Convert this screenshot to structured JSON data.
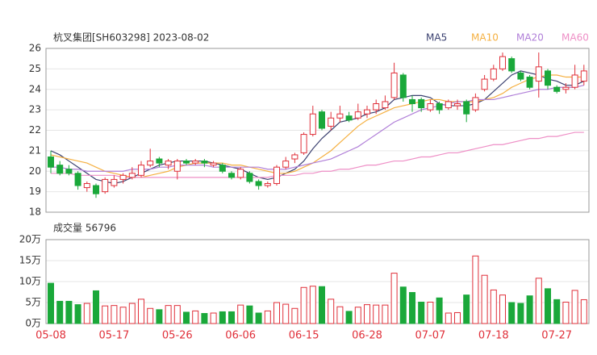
{
  "chart_data": [
    {
      "type": "candlestick",
      "title": "杭叉集团[SH603298] 2023-08-02",
      "categories": [
        "05-08",
        null,
        null,
        null,
        null,
        null,
        null,
        "05-17",
        null,
        null,
        null,
        null,
        null,
        null,
        "05-26",
        null,
        null,
        null,
        null,
        null,
        null,
        "06-06",
        null,
        null,
        null,
        null,
        null,
        null,
        "06-15",
        null,
        null,
        null,
        null,
        null,
        null,
        "06-28",
        null,
        null,
        null,
        null,
        null,
        null,
        "07-07",
        null,
        null,
        null,
        null,
        null,
        null,
        "07-18",
        null,
        null,
        null,
        null,
        null,
        null,
        "07-27",
        null,
        null,
        null
      ],
      "open": [
        20.7,
        20.3,
        20.1,
        19.9,
        19.2,
        19.3,
        19.0,
        19.3,
        19.6,
        19.7,
        19.8,
        20.3,
        20.6,
        20.3,
        20.0,
        20.5,
        20.4,
        20.5,
        20.3,
        20.3,
        19.9,
        19.7,
        19.9,
        19.5,
        19.3,
        19.4,
        20.2,
        20.6,
        20.9,
        21.8,
        22.9,
        22.2,
        22.6,
        22.7,
        22.6,
        22.8,
        23.0,
        23.1,
        23.6,
        24.7,
        23.5,
        23.5,
        23.0,
        23.3,
        23.1,
        23.2,
        23.4,
        23.0,
        24.0,
        24.5,
        25.0,
        25.5,
        24.8,
        24.6,
        24.4,
        24.9,
        24.1,
        24.0,
        24.1,
        24.4
      ],
      "high": [
        21.0,
        20.5,
        20.3,
        20.0,
        19.5,
        19.4,
        19.7,
        19.8,
        19.9,
        20.2,
        20.5,
        21.1,
        20.7,
        20.6,
        20.6,
        20.6,
        20.6,
        20.6,
        20.5,
        20.4,
        20.0,
        20.2,
        20.0,
        19.6,
        19.5,
        20.3,
        20.7,
        20.9,
        21.9,
        23.2,
        23.0,
        22.9,
        23.2,
        22.9,
        23.3,
        23.2,
        23.5,
        23.7,
        25.3,
        24.8,
        23.7,
        23.6,
        23.5,
        23.4,
        23.5,
        23.5,
        23.5,
        23.8,
        24.7,
        25.2,
        25.8,
        25.6,
        24.9,
        24.7,
        25.8,
        25.0,
        24.2,
        24.3,
        25.2,
        25.2
      ],
      "low": [
        19.9,
        19.8,
        19.8,
        19.1,
        19.0,
        18.7,
        18.9,
        19.2,
        19.4,
        19.6,
        19.7,
        20.2,
        20.2,
        20.1,
        19.6,
        20.3,
        20.3,
        20.2,
        20.2,
        19.9,
        19.6,
        19.6,
        19.4,
        19.1,
        19.2,
        19.3,
        20.1,
        20.4,
        20.8,
        21.7,
        22.0,
        22.0,
        22.4,
        22.4,
        22.5,
        22.6,
        22.8,
        23.0,
        23.5,
        23.4,
        22.9,
        22.9,
        22.9,
        22.8,
        23.0,
        23.0,
        22.4,
        22.9,
        23.9,
        24.4,
        24.9,
        24.8,
        24.4,
        24.0,
        23.6,
        24.0,
        23.8,
        23.8,
        24.0,
        24.2
      ],
      "close": [
        20.2,
        19.9,
        19.9,
        19.3,
        19.4,
        18.9,
        19.6,
        19.6,
        19.8,
        19.9,
        20.3,
        20.5,
        20.4,
        20.5,
        20.5,
        20.4,
        20.5,
        20.4,
        20.4,
        20.0,
        19.7,
        20.1,
        19.5,
        19.3,
        19.4,
        20.2,
        20.5,
        20.8,
        21.8,
        22.8,
        22.1,
        22.6,
        22.8,
        22.5,
        22.9,
        23.0,
        23.3,
        23.4,
        24.8,
        23.6,
        23.3,
        23.1,
        23.3,
        23.0,
        23.4,
        23.3,
        22.8,
        23.6,
        24.5,
        25.0,
        25.6,
        24.9,
        24.5,
        24.1,
        25.1,
        24.2,
        23.9,
        24.1,
        24.7,
        24.9
      ],
      "up_color": "#e0303a",
      "down_color": "#1aa83a",
      "series": [
        {
          "name": "MA5",
          "color": "#3b4170",
          "values": [
            21.0,
            20.8,
            20.5,
            20.2,
            19.9,
            19.6,
            19.5,
            19.4,
            19.5,
            19.7,
            19.9,
            20.1,
            20.3,
            20.4,
            20.5,
            20.5,
            20.5,
            20.5,
            20.4,
            20.3,
            20.2,
            20.1,
            19.9,
            19.7,
            19.6,
            19.7,
            19.9,
            20.1,
            20.5,
            21.1,
            21.6,
            22.0,
            22.4,
            22.5,
            22.6,
            22.8,
            22.9,
            23.1,
            23.5,
            23.6,
            23.7,
            23.7,
            23.6,
            23.3,
            23.2,
            23.2,
            23.2,
            23.3,
            23.5,
            23.9,
            24.3,
            24.7,
            24.9,
            24.8,
            24.7,
            24.5,
            24.4,
            24.2,
            24.2,
            24.4
          ]
        },
        {
          "name": "MA10",
          "color": "#f5b041",
          "values": [
            20.8,
            20.7,
            20.6,
            20.5,
            20.4,
            20.2,
            20.0,
            19.9,
            19.8,
            19.7,
            19.7,
            19.8,
            19.9,
            20.0,
            20.2,
            20.3,
            20.4,
            20.4,
            20.4,
            20.4,
            20.3,
            20.3,
            20.2,
            20.1,
            20.0,
            19.9,
            19.9,
            20.0,
            20.2,
            20.4,
            20.7,
            21.0,
            21.4,
            21.8,
            22.2,
            22.5,
            22.7,
            22.9,
            23.1,
            23.2,
            23.3,
            23.4,
            23.5,
            23.5,
            23.4,
            23.4,
            23.4,
            23.4,
            23.5,
            23.6,
            23.8,
            24.1,
            24.3,
            24.5,
            24.6,
            24.7,
            24.7,
            24.6,
            24.6,
            24.6
          ]
        },
        {
          "name": "MA20",
          "color": "#b07fd8",
          "values": [
            20.2,
            20.2,
            20.1,
            20.1,
            20.0,
            20.0,
            20.0,
            20.0,
            20.0,
            20.1,
            20.1,
            20.1,
            20.2,
            20.2,
            20.3,
            20.3,
            20.3,
            20.3,
            20.2,
            20.2,
            20.2,
            20.2,
            20.2,
            20.2,
            20.1,
            20.1,
            20.1,
            20.2,
            20.3,
            20.4,
            20.5,
            20.6,
            20.8,
            21.0,
            21.2,
            21.5,
            21.8,
            22.1,
            22.4,
            22.6,
            22.8,
            23.0,
            23.1,
            23.2,
            23.3,
            23.4,
            23.4,
            23.5,
            23.5,
            23.5,
            23.6,
            23.7,
            23.8,
            23.9,
            24.0,
            24.0,
            24.1,
            24.1,
            24.1,
            24.2
          ]
        },
        {
          "name": "MA60",
          "color": "#ee8fc6",
          "values": [
            19.9,
            19.9,
            19.9,
            19.8,
            19.8,
            19.8,
            19.8,
            19.8,
            19.7,
            19.7,
            19.7,
            19.7,
            19.7,
            19.7,
            19.7,
            19.7,
            19.7,
            19.7,
            19.7,
            19.7,
            19.7,
            19.7,
            19.7,
            19.7,
            19.7,
            19.8,
            19.8,
            19.8,
            19.9,
            19.9,
            20.0,
            20.0,
            20.1,
            20.1,
            20.2,
            20.3,
            20.3,
            20.4,
            20.5,
            20.5,
            20.6,
            20.7,
            20.7,
            20.8,
            20.9,
            20.9,
            21.0,
            21.1,
            21.2,
            21.3,
            21.3,
            21.4,
            21.5,
            21.6,
            21.6,
            21.7,
            21.7,
            21.8,
            21.9,
            21.9
          ]
        }
      ],
      "ylim": [
        18,
        26
      ],
      "yticks": [
        18,
        19,
        20,
        21,
        22,
        23,
        24,
        25,
        26
      ],
      "grid": true
    },
    {
      "type": "bar",
      "title": "成交量 56796",
      "values": [
        9.6,
        5.3,
        5.3,
        4.5,
        4.8,
        7.8,
        4.2,
        4.3,
        3.9,
        4.8,
        5.8,
        3.6,
        3.3,
        4.3,
        4.3,
        2.7,
        3.0,
        2.4,
        2.5,
        2.8,
        2.8,
        4.4,
        4.2,
        2.5,
        3.0,
        5.0,
        4.6,
        3.6,
        8.6,
        8.9,
        8.8,
        5.8,
        4.0,
        2.9,
        3.9,
        4.5,
        4.4,
        4.4,
        12.0,
        8.7,
        7.4,
        5.1,
        5.1,
        6.1,
        2.5,
        2.6,
        6.8,
        16.1,
        11.5,
        8.0,
        6.8,
        5.0,
        4.8,
        6.6,
        10.8,
        8.3,
        5.7,
        5.1,
        7.9,
        5.6796
      ],
      "ylim": [
        0,
        20
      ],
      "yticks": [
        {
          "value": 0,
          "label": "0万"
        },
        {
          "value": 5,
          "label": "5万"
        },
        {
          "value": 10,
          "label": "10万"
        },
        {
          "value": 15,
          "label": "15万"
        },
        {
          "value": 20,
          "label": "20万"
        }
      ],
      "grid": true
    }
  ]
}
